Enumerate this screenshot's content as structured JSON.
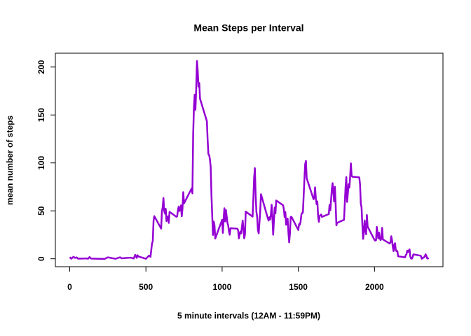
{
  "chart_data": {
    "type": "line",
    "title": "Mean Steps per Interval",
    "x_label": "5 minute intervals (12AM - 11:59PM)",
    "y_label": "mean number of steps",
    "xlim": [
      -94.2,
      2449.2
    ],
    "ylim": [
      -8.25,
      214.42
    ],
    "xticks": [
      0,
      500,
      1000,
      1500,
      2000
    ],
    "yticks": [
      0,
      50,
      100,
      150,
      200
    ],
    "series": [
      {
        "color": "#9400d3",
        "x": [
          0,
          10,
          25,
          35,
          45,
          55,
          100,
          110,
          120,
          130,
          140,
          200,
          230,
          250,
          300,
          330,
          340,
          400,
          420,
          430,
          440,
          445,
          450,
          500,
          520,
          530,
          540,
          545,
          550,
          555,
          600,
          605,
          610,
          615,
          620,
          625,
          630,
          635,
          640,
          645,
          650,
          655,
          700,
          705,
          710,
          715,
          720,
          725,
          730,
          735,
          740,
          745,
          750,
          800,
          805,
          810,
          815,
          820,
          825,
          830,
          835,
          840,
          845,
          850,
          855,
          900,
          905,
          910,
          915,
          920,
          925,
          930,
          935,
          940,
          945,
          950,
          955,
          1000,
          1005,
          1010,
          1015,
          1020,
          1025,
          1030,
          1035,
          1040,
          1045,
          1050,
          1055,
          1100,
          1105,
          1110,
          1115,
          1120,
          1125,
          1130,
          1135,
          1140,
          1145,
          1150,
          1155,
          1200,
          1205,
          1210,
          1215,
          1220,
          1225,
          1230,
          1235,
          1240,
          1245,
          1250,
          1255,
          1300,
          1305,
          1310,
          1315,
          1320,
          1325,
          1330,
          1335,
          1340,
          1345,
          1350,
          1355,
          1400,
          1405,
          1410,
          1415,
          1420,
          1425,
          1430,
          1435,
          1440,
          1445,
          1450,
          1455,
          1500,
          1505,
          1510,
          1515,
          1520,
          1525,
          1530,
          1535,
          1540,
          1545,
          1550,
          1555,
          1600,
          1605,
          1610,
          1615,
          1620,
          1625,
          1630,
          1635,
          1640,
          1645,
          1650,
          1655,
          1700,
          1705,
          1710,
          1715,
          1720,
          1725,
          1730,
          1735,
          1740,
          1745,
          1750,
          1755,
          1800,
          1805,
          1810,
          1815,
          1820,
          1825,
          1830,
          1835,
          1840,
          1845,
          1850,
          1855,
          1900,
          1905,
          1910,
          1915,
          1920,
          1925,
          1930,
          1935,
          1940,
          1945,
          1950,
          1955,
          2000,
          2005,
          2010,
          2015,
          2020,
          2025,
          2030,
          2035,
          2040,
          2045,
          2050,
          2055,
          2100,
          2105,
          2110,
          2115,
          2120,
          2125,
          2130,
          2135,
          2140,
          2145,
          2150,
          2155,
          2200,
          2205,
          2210,
          2215,
          2220,
          2225,
          2230,
          2235,
          2240,
          2245,
          2250,
          2255,
          2300,
          2305,
          2310,
          2315,
          2320,
          2325,
          2330,
          2335,
          2340,
          2345,
          2350,
          2355
        ],
        "values": [
          1.7,
          0.1,
          2.1,
          0.9,
          1.5,
          0.1,
          0.3,
          0.4,
          0,
          1.8,
          0.2,
          0,
          0,
          1.5,
          0,
          1.6,
          0.5,
          1.2,
          0.3,
          4.1,
          0.9,
          3.7,
          2.5,
          0,
          3.3,
          2.1,
          16,
          18.3,
          39.5,
          44.5,
          31.5,
          49.3,
          53.8,
          63.5,
          50,
          47.1,
          52.2,
          39.3,
          44,
          44.2,
          37.4,
          49,
          43.8,
          44.4,
          50.5,
          54.5,
          49.9,
          51,
          55.7,
          44.3,
          52.3,
          69.5,
          57.8,
          73.4,
          68.2,
          129.4,
          157.5,
          171.2,
          155.4,
          177.3,
          206.2,
          195.9,
          179.6,
          183.4,
          167,
          143.5,
          124,
          109.1,
          108.1,
          103.7,
          96,
          66.2,
          45.2,
          24.8,
          38.8,
          35,
          21.1,
          40.6,
          27,
          42.4,
          52.7,
          38.9,
          50.8,
          44.3,
          37.4,
          34.7,
          28.3,
          25.1,
          31.9,
          31.4,
          29.7,
          21.3,
          25.5,
          28.4,
          26.5,
          33.3,
          39.9,
          30.7,
          21.3,
          25.5,
          49.2,
          44,
          63,
          84.6,
          94.5,
          66.2,
          49,
          43.7,
          30,
          26.5,
          37.7,
          49.7,
          67.3,
          42.3,
          39.9,
          43.3,
          41,
          46.2,
          56.4,
          42.8,
          25.1,
          40,
          53.5,
          47.3,
          60.8,
          55.8,
          52,
          43.6,
          48.7,
          35.5,
          37.5,
          42,
          27.5,
          17.1,
          26.1,
          43.6,
          43.8,
          30,
          36.1,
          35.5,
          38.8,
          46,
          47.8,
          48.1,
          65.3,
          82.9,
          98.7,
          102.1,
          84,
          62.1,
          64.1,
          74.5,
          63.2,
          56.9,
          59.8,
          43.9,
          38.6,
          44.7,
          45.5,
          46.2,
          43.7,
          46.6,
          56.3,
          50.7,
          61.2,
          72.7,
          78.9,
          68.9,
          59.7,
          75.1,
          56.5,
          34.8,
          37.5,
          40.7,
          58,
          74.7,
          85.3,
          59.3,
          67.8,
          77.7,
          74.2,
          85.3,
          99.5,
          86.6,
          85.6,
          84.9,
          77.8,
          58,
          53.4,
          36.3,
          20.7,
          27.4,
          40,
          30.2,
          25.5,
          45.7,
          33.5,
          19.6,
          19,
          19.3,
          33.3,
          26.8,
          21.2,
          27.3,
          21.3,
          19.5,
          21.3,
          32.3,
          20.2,
          15.9,
          17.2,
          23.5,
          19.2,
          12.5,
          8,
          14.7,
          16.3,
          8.7,
          7.8,
          8.1,
          2.6,
          1.5,
          3.7,
          4.8,
          8.5,
          7.1,
          8.7,
          9.8,
          2.2,
          0.3,
          0.1,
          1.6,
          4.6,
          3.3,
          2.8,
          0,
          0.8,
          1,
          1.6,
          2.6,
          4.7,
          3.3,
          0.6,
          0.2,
          1.1
        ]
      }
    ]
  }
}
